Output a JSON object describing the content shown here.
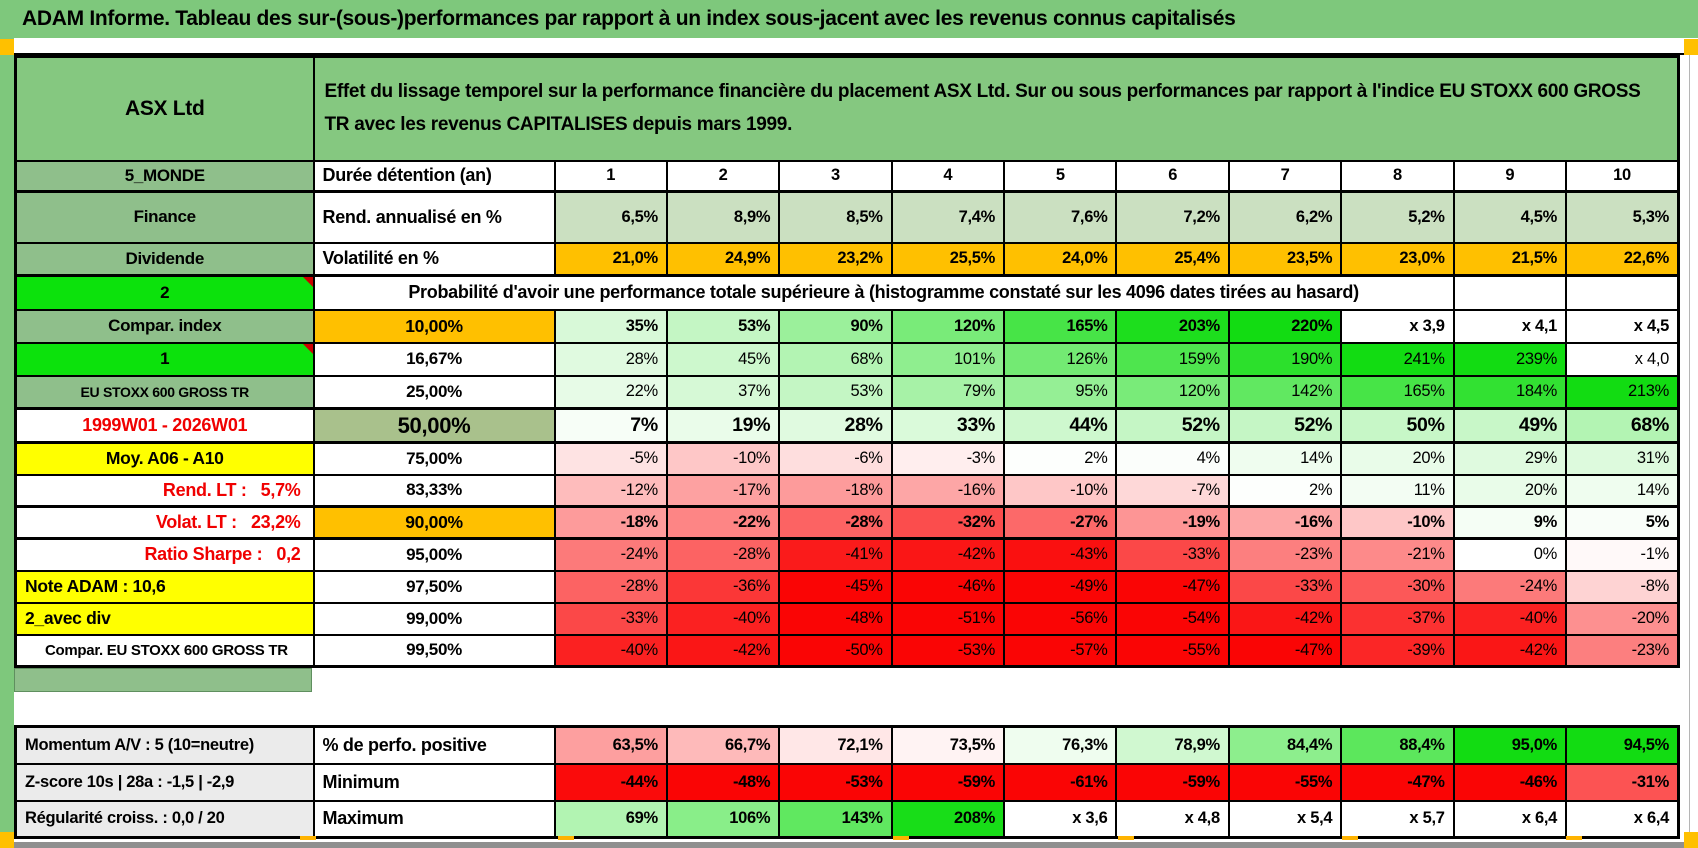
{
  "title": "ADAM Informe. Tableau des sur-(sous-)performances par rapport à un index sous-jacent avec les revenus connus capitalisés",
  "header": {
    "name": "ASX Ltd",
    "description": "Effet du lissage temporel sur la performance financière du placement ASX Ltd. Sur ou sous performances par rapport à l'indice EU STOXX 600 GROSS TR avec les revenus CAPITALISES depuis mars 1999."
  },
  "colors": {
    "title_green": "#7EC87C",
    "header_green": "#85C880",
    "label_green": "#8FBF8B",
    "bright_green": "#0CE20C",
    "yellow": "#FFFF00",
    "orange": "#FFC000",
    "sage": "#CBE0C1",
    "olive": "#A9C18C",
    "gray_label": "#EBEBEB",
    "scale_green": "#12DC12",
    "scale_red": "#FA0505",
    "red_text": "#F00000"
  },
  "table": {
    "rows": [
      {
        "label": "5_MONDE",
        "label_style": "green",
        "col2": "Durée détention (an)",
        "col2_style": "text",
        "values": [
          "1",
          "2",
          "3",
          "4",
          "5",
          "6",
          "7",
          "8",
          "9",
          "10"
        ],
        "fill": "none",
        "center": true,
        "bold": true,
        "thick_bottom": true
      },
      {
        "label": "Finance",
        "label_style": "green",
        "col2": "Rend. annualisé en %",
        "col2_style": "text",
        "values": [
          "6,5%",
          "8,9%",
          "8,5%",
          "7,4%",
          "7,6%",
          "7,2%",
          "6,2%",
          "5,2%",
          "4,5%",
          "5,3%"
        ],
        "fill": "sage",
        "bold": true
      },
      {
        "label": "Dividende",
        "label_style": "green",
        "col2": "Volatilité en %",
        "col2_style": "text",
        "values": [
          "21,0%",
          "24,9%",
          "23,2%",
          "25,5%",
          "24,0%",
          "25,4%",
          "23,5%",
          "23,0%",
          "21,5%",
          "22,6%"
        ],
        "fill": "orange",
        "bold": true,
        "thick_bottom": true
      },
      {
        "label": "2",
        "label_style": "bright",
        "marker": true,
        "merged_text": "Probabilité d'avoir une performance totale supérieure à (histogramme constaté sur les 4096 dates tirées au hasard)",
        "empty_tail": 2
      },
      {
        "label": "Compar. index",
        "label_style": "green",
        "col2": "10,00%",
        "col2_style": "orange",
        "values": [
          "35%",
          "53%",
          "90%",
          "120%",
          "165%",
          "203%",
          "220%",
          "x 3,9",
          "x 4,1",
          "x 4,5"
        ],
        "fill": "heat",
        "bold": true
      },
      {
        "label": "1",
        "label_style": "bright",
        "marker": true,
        "col2": "16,67%",
        "col2_style": "pct",
        "values": [
          "28%",
          "45%",
          "68%",
          "101%",
          "126%",
          "159%",
          "190%",
          "241%",
          "239%",
          "x 4,0"
        ],
        "fill": "heat"
      },
      {
        "label": "EU STOXX 600 GROSS TR",
        "label_style": "green-small",
        "col2": "25,00%",
        "col2_style": "pct",
        "values": [
          "22%",
          "37%",
          "53%",
          "79%",
          "95%",
          "120%",
          "142%",
          "165%",
          "184%",
          "213%"
        ],
        "fill": "heat"
      },
      {
        "label": "1999W01 - 2026W01",
        "label_style": "red-center",
        "col2": "50,00%",
        "col2_style": "olive",
        "values": [
          "7%",
          "19%",
          "28%",
          "33%",
          "44%",
          "52%",
          "52%",
          "50%",
          "49%",
          "68%"
        ],
        "fill": "heat",
        "big": true,
        "thick_top": true,
        "thick_bottom": true
      },
      {
        "label": "Moy. A06 - A10",
        "label_style": "yellow-center",
        "col2": "75,00%",
        "col2_style": "pct",
        "values": [
          "-5%",
          "-10%",
          "-6%",
          "-3%",
          "2%",
          "4%",
          "14%",
          "20%",
          "29%",
          "31%"
        ],
        "fill": "heat"
      },
      {
        "label": "Rend. LT :   5,7%",
        "label_style": "red-right",
        "col2": "83,33%",
        "col2_style": "pct",
        "values": [
          "-12%",
          "-17%",
          "-18%",
          "-16%",
          "-10%",
          "-7%",
          "2%",
          "11%",
          "20%",
          "14%"
        ],
        "fill": "heat"
      },
      {
        "label": "Volat. LT :   23,2%",
        "label_style": "red-right",
        "col2": "90,00%",
        "col2_style": "orange",
        "values": [
          "-18%",
          "-22%",
          "-28%",
          "-32%",
          "-27%",
          "-19%",
          "-16%",
          "-10%",
          "9%",
          "5%"
        ],
        "fill": "heat",
        "bold": true,
        "thick_top": true,
        "thick_bottom": true
      },
      {
        "label": "Ratio Sharpe :   0,2",
        "label_style": "red-right",
        "col2": "95,00%",
        "col2_style": "pct",
        "values": [
          "-24%",
          "-28%",
          "-41%",
          "-42%",
          "-43%",
          "-33%",
          "-23%",
          "-21%",
          "0%",
          "-1%"
        ],
        "fill": "heat"
      },
      {
        "label": "Note ADAM : 10,6",
        "label_style": "yellow-left",
        "col2": "97,50%",
        "col2_style": "pct",
        "values": [
          "-28%",
          "-36%",
          "-45%",
          "-46%",
          "-49%",
          "-47%",
          "-33%",
          "-30%",
          "-24%",
          "-8%"
        ],
        "fill": "heat"
      },
      {
        "label": "2_avec div",
        "label_style": "yellow-left",
        "col2": "99,00%",
        "col2_style": "pct",
        "values": [
          "-33%",
          "-40%",
          "-48%",
          "-51%",
          "-56%",
          "-54%",
          "-42%",
          "-37%",
          "-40%",
          "-20%"
        ],
        "fill": "heat"
      },
      {
        "label": "Compar. EU STOXX 600 GROSS TR",
        "label_style": "plain-left",
        "col2": "99,50%",
        "col2_style": "pct",
        "values": [
          "-40%",
          "-42%",
          "-50%",
          "-53%",
          "-57%",
          "-55%",
          "-47%",
          "-39%",
          "-42%",
          "-23%"
        ],
        "fill": "heat",
        "thick_bottom": true
      }
    ],
    "bottom_rows": [
      {
        "label": "Momentum A/V : 5 (10=neutre)",
        "label_style": "gray",
        "col2": "% de perfo. positive",
        "col2_style": "text",
        "values": [
          "63,5%",
          "66,7%",
          "72,1%",
          "73,5%",
          "76,3%",
          "78,9%",
          "84,4%",
          "88,4%",
          "95,0%",
          "94,5%"
        ],
        "fill": "perf75",
        "bold": true
      },
      {
        "label": "Z-score 10s | 28a : -1,5 | -2,9",
        "label_style": "gray",
        "col2": "Minimum",
        "col2_style": "text",
        "values": [
          "-44%",
          "-48%",
          "-53%",
          "-59%",
          "-61%",
          "-59%",
          "-55%",
          "-47%",
          "-46%",
          "-31%"
        ],
        "fill": "heat",
        "bold": true
      },
      {
        "label": "Régularité croiss. : 0,0 / 20",
        "label_style": "gray",
        "col2": "Maximum",
        "col2_style": "text",
        "values": [
          "69%",
          "106%",
          "143%",
          "208%",
          "x 3,6",
          "x 4,8",
          "x 5,4",
          "x 5,7",
          "x 6,4",
          "x 6,4"
        ],
        "fill": "heat",
        "bold": true
      }
    ]
  }
}
